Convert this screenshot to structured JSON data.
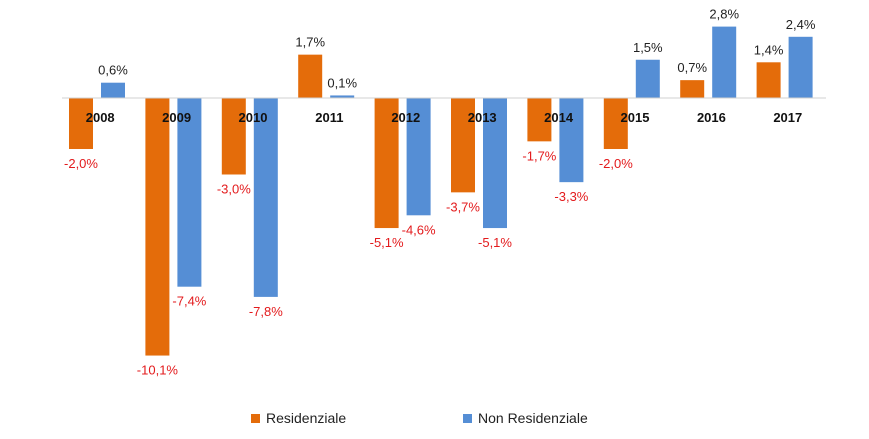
{
  "chart_data": {
    "type": "bar",
    "categories": [
      "2008",
      "2009",
      "2010",
      "2011",
      "2012",
      "2013",
      "2014",
      "2015",
      "2016",
      "2017"
    ],
    "series": [
      {
        "name": "Residenziale",
        "color": "#E46C0A",
        "values": [
          -2.0,
          -10.1,
          -3.0,
          1.7,
          -5.1,
          -3.7,
          -1.7,
          -2.0,
          0.7,
          1.4
        ],
        "labels": [
          "-2,0%",
          "-10,1%",
          "-3,0%",
          "1,7%",
          "-5,1%",
          "-3,7%",
          "-1,7%",
          "-2,0%",
          "0,7%",
          "1,4%"
        ]
      },
      {
        "name": "Non Residenziale",
        "color": "#558ED5",
        "values": [
          0.6,
          -7.4,
          -7.8,
          0.1,
          -4.6,
          -5.1,
          -3.3,
          1.5,
          2.8,
          2.4
        ],
        "labels": [
          "0,6%",
          "-7,4%",
          "-7,8%",
          "0,1%",
          "-4,6%",
          "-5,1%",
          "-3,3%",
          "1,5%",
          "2,8%",
          "2,4%"
        ]
      }
    ],
    "positive_label_color": "#222222",
    "negative_label_color": "#E31A1C",
    "ylim": [
      -10.1,
      2.8
    ],
    "grid": false,
    "legend": "bottom"
  }
}
